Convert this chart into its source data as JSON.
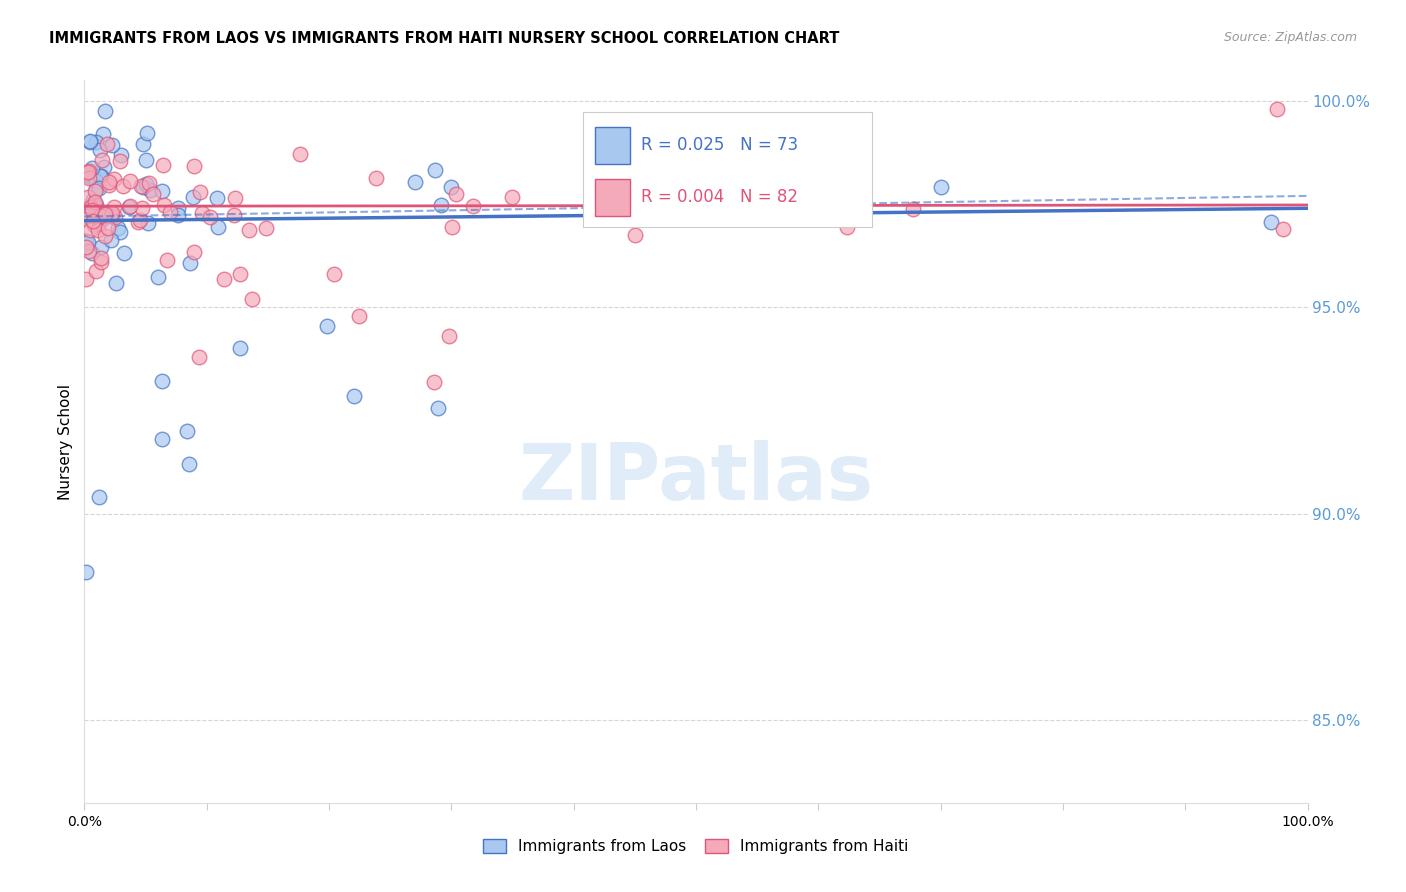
{
  "title": "IMMIGRANTS FROM LAOS VS IMMIGRANTS FROM HAITI NURSERY SCHOOL CORRELATION CHART",
  "source": "Source: ZipAtlas.com",
  "ylabel": "Nursery School",
  "legend_label1": "Immigrants from Laos",
  "legend_label2": "Immigrants from Haiti",
  "r1": "0.025",
  "n1": "73",
  "r2": "0.004",
  "n2": "82",
  "color_laos": "#A8C8F0",
  "color_haiti": "#F4AABB",
  "color_laos_dark": "#4472C4",
  "color_haiti_dark": "#E05577",
  "color_grid": "#CCCCCC",
  "color_axis_right": "#5B9BD5",
  "background_color": "#FFFFFF",
  "xlim": [
    0.0,
    1.0
  ],
  "ylim": [
    0.83,
    1.005
  ],
  "yticks": [
    0.85,
    0.9,
    0.95,
    1.0
  ],
  "ytick_labels": [
    "85.0%",
    "90.0%",
    "95.0%",
    "100.0%"
  ]
}
